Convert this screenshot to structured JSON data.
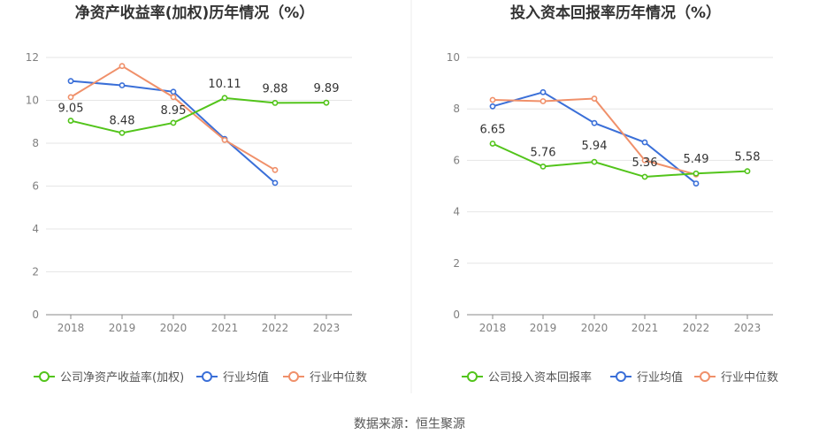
{
  "source": "数据来源：恒生聚源",
  "colors": {
    "company": "#52c41a",
    "avg": "#3a6fd8",
    "median": "#f0906a"
  },
  "chart_data": [
    {
      "type": "line",
      "title": "净资产收益率(加权)历年情况（%）",
      "x": [
        "2018",
        "2019",
        "2020",
        "2021",
        "2022",
        "2023"
      ],
      "ylim": [
        0,
        12
      ],
      "yticks": [
        0,
        2,
        4,
        6,
        8,
        10,
        12
      ],
      "series": [
        {
          "name": "公司净资产收益率(加权)",
          "values": [
            9.05,
            8.48,
            8.95,
            10.11,
            9.88,
            9.89
          ],
          "labels": [
            "9.05",
            "8.48",
            "8.95",
            "10.11",
            "9.88",
            "9.89"
          ]
        },
        {
          "name": "行业均值",
          "values": [
            10.9,
            10.7,
            10.4,
            8.2,
            6.15,
            null
          ]
        },
        {
          "name": "行业中位数",
          "values": [
            10.15,
            11.6,
            10.15,
            8.15,
            6.75,
            null
          ]
        }
      ],
      "legend_position": "bottom"
    },
    {
      "type": "line",
      "title": "投入资本回报率历年情况（%）",
      "x": [
        "2018",
        "2019",
        "2020",
        "2021",
        "2022",
        "2023"
      ],
      "ylim": [
        0,
        10
      ],
      "yticks": [
        0,
        2,
        4,
        6,
        8,
        10
      ],
      "series": [
        {
          "name": "公司投入资本回报率",
          "values": [
            6.65,
            5.76,
            5.94,
            5.36,
            5.49,
            5.58
          ],
          "labels": [
            "6.65",
            "5.76",
            "5.94",
            "5.36",
            "5.49",
            "5.58"
          ]
        },
        {
          "name": "行业均值",
          "values": [
            8.1,
            8.65,
            7.45,
            6.7,
            5.1,
            null
          ]
        },
        {
          "name": "行业中位数",
          "values": [
            8.35,
            8.3,
            8.4,
            6.0,
            5.45,
            null
          ]
        }
      ],
      "legend_position": "bottom"
    }
  ]
}
